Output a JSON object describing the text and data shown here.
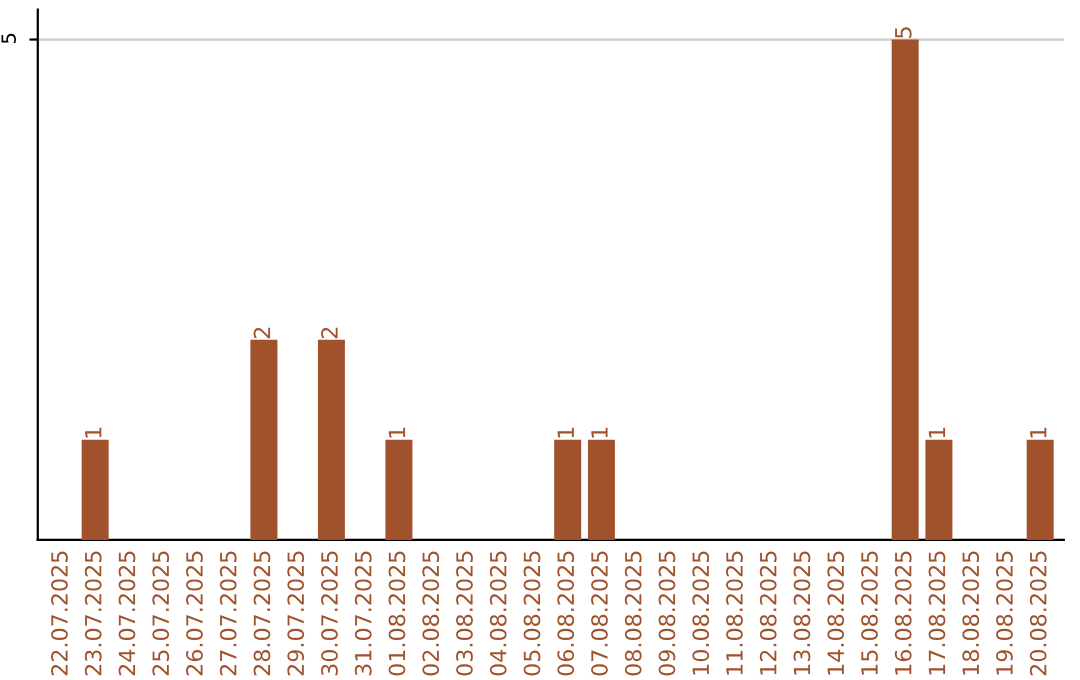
{
  "chart_data": {
    "type": "bar",
    "categories": [
      "22.07.2025",
      "23.07.2025",
      "24.07.2025",
      "25.07.2025",
      "26.07.2025",
      "27.07.2025",
      "28.07.2025",
      "29.07.2025",
      "30.07.2025",
      "31.07.2025",
      "01.08.2025",
      "02.08.2025",
      "03.08.2025",
      "04.08.2025",
      "05.08.2025",
      "06.08.2025",
      "07.08.2025",
      "08.08.2025",
      "09.08.2025",
      "10.08.2025",
      "11.08.2025",
      "12.08.2025",
      "13.08.2025",
      "14.08.2025",
      "15.08.2025",
      "16.08.2025",
      "17.08.2025",
      "18.08.2025",
      "19.08.2025",
      "20.08.2025"
    ],
    "values": [
      0,
      1,
      0,
      0,
      0,
      0,
      2,
      0,
      2,
      0,
      1,
      0,
      0,
      0,
      0,
      1,
      1,
      0,
      0,
      0,
      0,
      0,
      0,
      0,
      0,
      5,
      1,
      0,
      0,
      1
    ],
    "value_labels": [
      null,
      "1",
      null,
      null,
      null,
      null,
      "2",
      null,
      "2",
      null,
      "1",
      null,
      null,
      null,
      null,
      "1",
      "1",
      null,
      null,
      null,
      null,
      null,
      null,
      null,
      null,
      "5",
      "1",
      null,
      null,
      "1"
    ],
    "color": "#a0522d",
    "ylim": [
      0,
      5.3
    ],
    "yticks": [
      5
    ],
    "grid": "y"
  }
}
